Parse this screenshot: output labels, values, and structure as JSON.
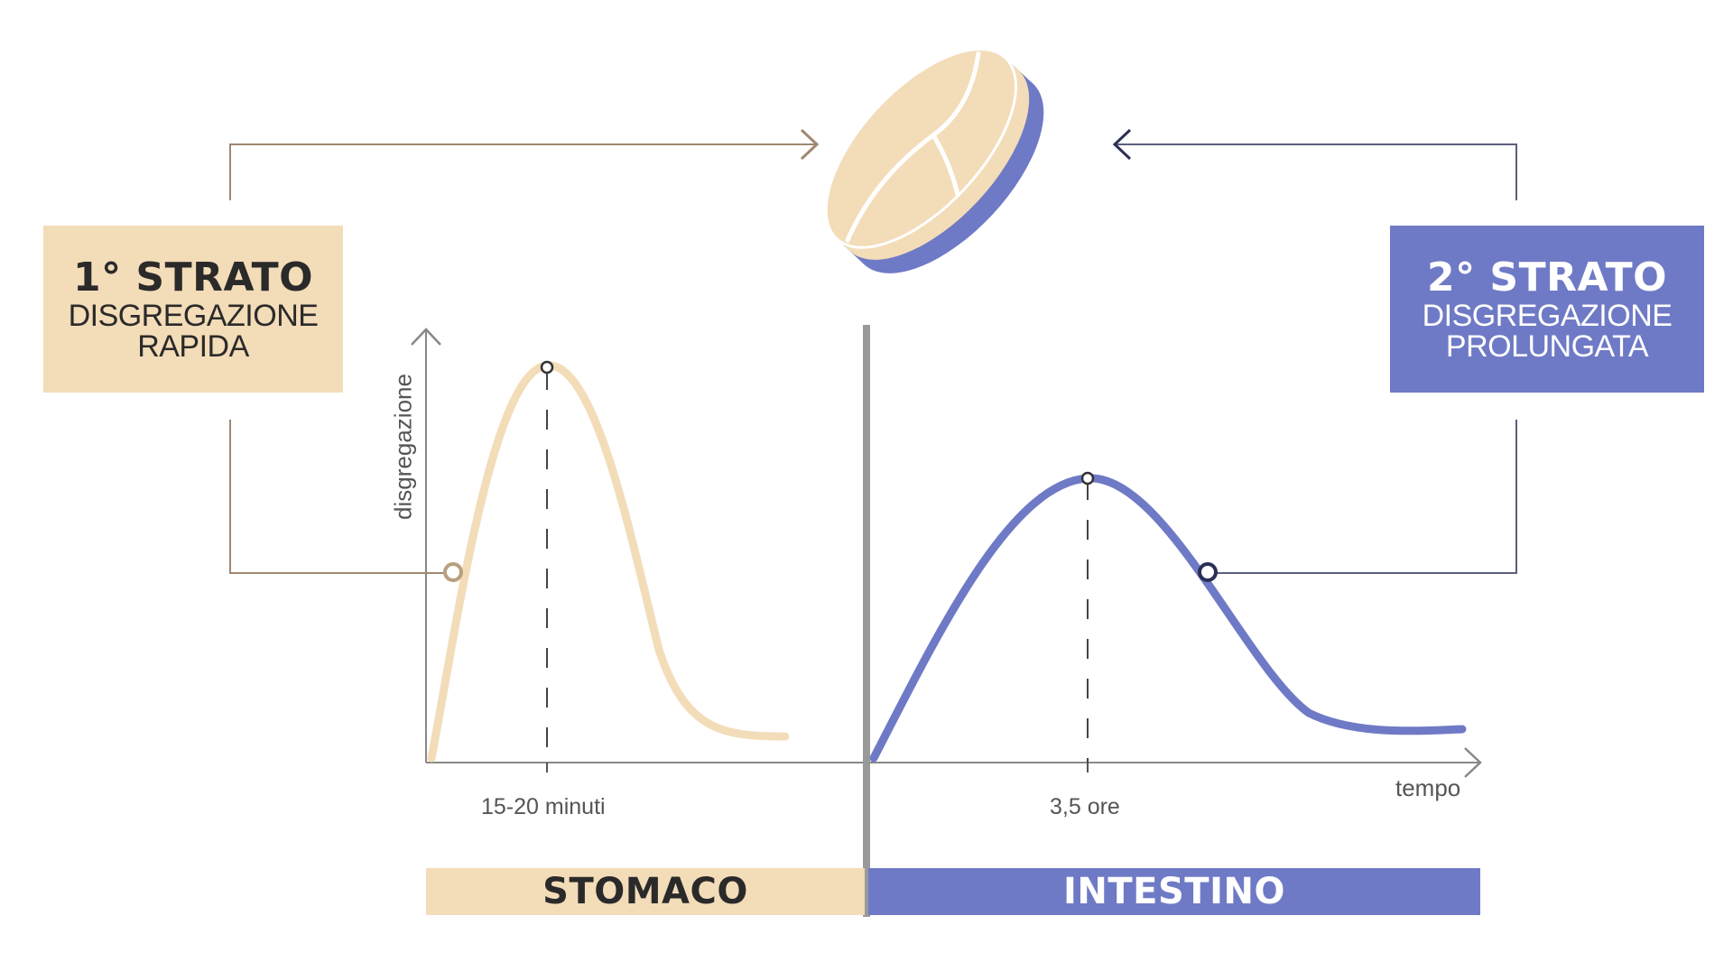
{
  "layer1": {
    "title": "1° STRATO",
    "line1": "DISGREGAZIONE",
    "line2": "RAPIDA",
    "color": "#f3dcb8",
    "text_color": "#2b2a2a"
  },
  "layer2": {
    "title": "2° STRATO",
    "line1": "DISGREGAZIONE",
    "line2": "PROLUNGATA",
    "color": "#6f7ac6",
    "text_color": "#ffffff"
  },
  "axes": {
    "y_label": "disgregazione",
    "x_label": "tempo"
  },
  "peaks": {
    "stomach_peak_label": "15-20 minuti",
    "intestine_peak_label": "3,5 ore"
  },
  "regions": {
    "stomach": "STOMACO",
    "intestine": "INTESTINO"
  },
  "colors": {
    "beige": "#f3dcb8",
    "blue": "#6f7ac6",
    "axis": "#888888",
    "divider": "#999999",
    "connector_beige": "#a08770",
    "connector_blue": "#5a5f7d"
  },
  "icons": {
    "tablet": "tablet-icon"
  }
}
